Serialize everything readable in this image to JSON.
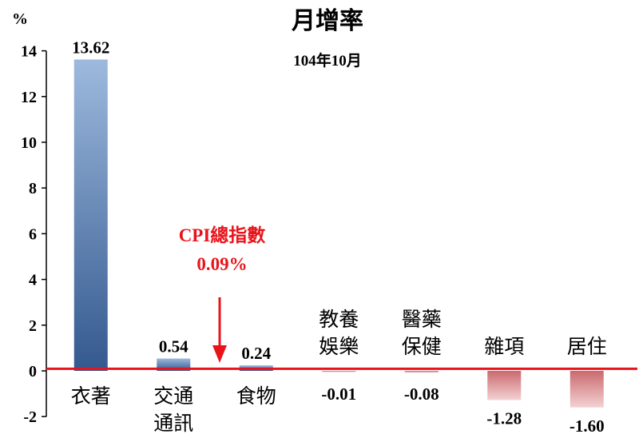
{
  "chart_data": {
    "type": "bar",
    "title": "月增率",
    "subtitle": "104年10月",
    "ylabel": "%",
    "ylim": [
      -2,
      14
    ],
    "yticks": [
      -2,
      0,
      2,
      4,
      6,
      8,
      10,
      12,
      14
    ],
    "grid": false,
    "legend": "none",
    "categories": [
      {
        "lines": [
          "衣著"
        ],
        "position": "below"
      },
      {
        "lines": [
          "交通",
          "通訊"
        ],
        "position": "below"
      },
      {
        "lines": [
          "食物"
        ],
        "position": "below"
      },
      {
        "lines": [
          "教養",
          "娛樂"
        ],
        "position": "above"
      },
      {
        "lines": [
          "醫藥",
          "保健"
        ],
        "position": "above"
      },
      {
        "lines": [
          "雜項"
        ],
        "position": "above"
      },
      {
        "lines": [
          "居住"
        ],
        "position": "above"
      }
    ],
    "values": [
      13.62,
      0.54,
      0.24,
      -0.01,
      -0.08,
      -1.28,
      -1.6
    ],
    "value_labels": [
      "13.62",
      "0.54",
      "0.24",
      "-0.01",
      "-0.08",
      "-1.28",
      "-1.60"
    ],
    "reference_line": {
      "name_label": "CPI總指數",
      "value_label": "0.09%",
      "value": 0.09
    },
    "colors": {
      "positive_top": "#9db9dd",
      "positive_bottom": "#34598f",
      "negative_top": "#ca6a6e",
      "negative_bottom": "#f3d2d3",
      "reference": "#e8141c",
      "text": "#000000",
      "annotation": "#e8141c"
    }
  }
}
